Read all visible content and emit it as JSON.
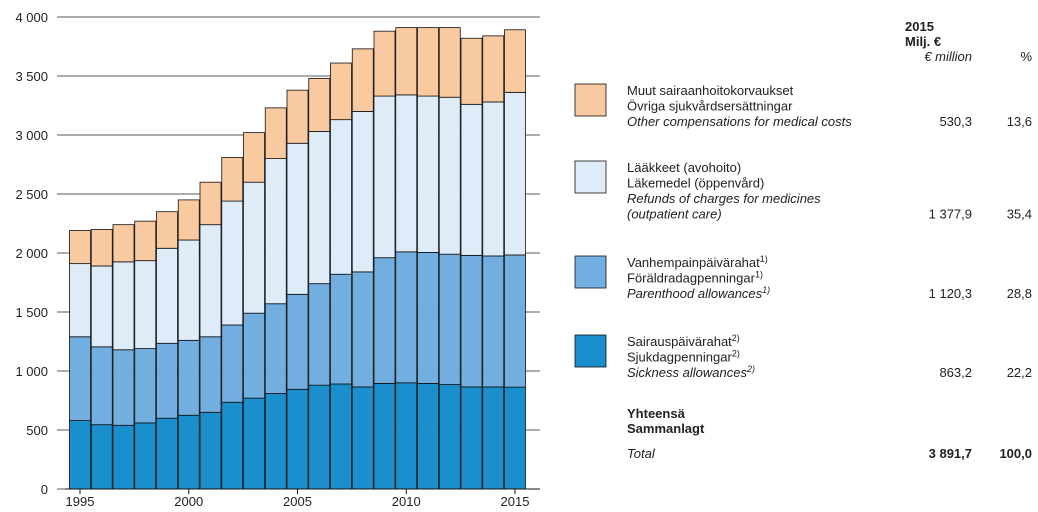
{
  "chart_data": {
    "type": "bar",
    "stacked": true,
    "categories": [
      "1995",
      null,
      null,
      null,
      null,
      "2000",
      null,
      null,
      null,
      null,
      "2005",
      null,
      null,
      null,
      null,
      "2010",
      null,
      null,
      null,
      null,
      "2015"
    ],
    "ylim": [
      0,
      4000
    ],
    "yticks": [
      0,
      {
        "value": 500,
        "label": "500"
      },
      {
        "value": 1000,
        "label": "1 000"
      },
      {
        "value": 1500,
        "label": "1 500"
      },
      {
        "value": 2000,
        "label": "2 000"
      },
      {
        "value": 2500,
        "label": "2 500"
      },
      {
        "value": 3000,
        "label": "3 000"
      },
      {
        "value": 3500,
        "label": "3 500"
      },
      {
        "value": 4000,
        "label": "4 000"
      }
    ],
    "grid": true,
    "series": [
      {
        "name": "Sairauspäivärahat",
        "name_sv": "Sjukdagpenningar",
        "name_en": [
          "Sickness allowances"
        ],
        "note": "2)",
        "color": "#1a8fce",
        "values": [
          580,
          545,
          540,
          560,
          600,
          625,
          650,
          735,
          770,
          810,
          845,
          880,
          890,
          865,
          895,
          900,
          895,
          885,
          865,
          865,
          863.2
        ],
        "value_2015": 863.2,
        "value_2015_label": "863,2",
        "share": 22.2,
        "share_label": "22,2"
      },
      {
        "name": "Vanhempainpäivärahat",
        "name_sv": "Föräldradagpenningar",
        "name_en": [
          "Parenthood allowances"
        ],
        "note": "1)",
        "color": "#72afe0",
        "values": [
          710,
          660,
          640,
          630,
          635,
          635,
          640,
          655,
          720,
          760,
          805,
          860,
          930,
          975,
          1065,
          1110,
          1110,
          1105,
          1115,
          1110,
          1120.3
        ],
        "value_2015": 1120.3,
        "value_2015_label": "1 120,3",
        "share": 28.8,
        "share_label": "28,8"
      },
      {
        "name": "Lääkkeet (avohoito)",
        "name_sv": "Läkemedel (öppenvård)",
        "name_en": [
          "Refunds of charges for medicines",
          "(outpatient care)"
        ],
        "color": "#deebf8",
        "values": [
          620,
          685,
          745,
          745,
          805,
          850,
          950,
          1050,
          1110,
          1230,
          1280,
          1290,
          1310,
          1360,
          1370,
          1330,
          1325,
          1330,
          1280,
          1305,
          1377.9
        ],
        "value_2015": 1377.9,
        "value_2015_label": "1 377,9",
        "share": 35.4,
        "share_label": "35,4"
      },
      {
        "name": "Muut sairaanhoitokorvaukset",
        "name_sv": "Övriga sjukvårdsersättningar",
        "name_en": [
          "Other compensations for medical costs"
        ],
        "color": "#f9c9a0",
        "values": [
          280,
          310,
          315,
          335,
          310,
          340,
          360,
          370,
          420,
          430,
          450,
          450,
          480,
          530,
          550,
          570,
          580,
          590,
          560,
          560,
          530.3
        ],
        "value_2015": 530.3,
        "value_2015_label": "530,3",
        "share": 13.6,
        "share_label": "13,6"
      }
    ],
    "table_header": {
      "year": "2015",
      "unit": "Milj. €",
      "unit_en": "€ million",
      "share": "%"
    },
    "total": {
      "name": "Yhteensä",
      "name_sv": "Sammanlagt",
      "name_en": "Total",
      "value": 3891.7,
      "value_label": "3 891,7",
      "share": 100.0,
      "share_label": "100,0"
    }
  }
}
